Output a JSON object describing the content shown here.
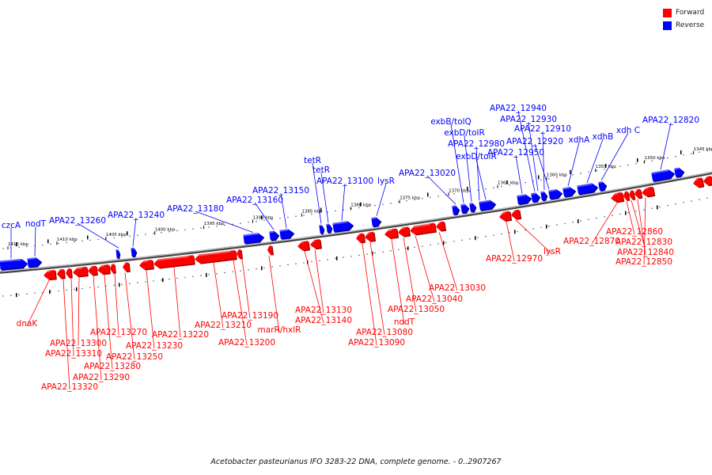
{
  "legend": {
    "forward_label": "Forward",
    "reverse_label": "Reverse",
    "forward_color": "#ff0000",
    "reverse_color": "#0000ff"
  },
  "caption": "Acetobacter pasteurianus IFO 3283-22 DNA, complete genome. - 0..2907267",
  "colors": {
    "forward": "#ff0000",
    "reverse": "#0000ff",
    "backbone": "#777777"
  },
  "ruler": {
    "unit": "kbp",
    "direction": "descending",
    "ticks": [
      1415,
      1410,
      1405,
      1400,
      1395,
      1390,
      1385,
      1380,
      1375,
      1370,
      1365,
      1360,
      1355,
      1350,
      1345
    ]
  },
  "reverse_labels": [
    "czcA",
    "nodT",
    "APA22_13260",
    "APA22_13240",
    "APA22_13180",
    "APA22_13160",
    "APA22_13150",
    "tetR",
    "tetR",
    "APA22_13100",
    "lysR",
    "APA22_13020",
    "exbB/tolQ",
    "exbD/tolR",
    "APA22_12980",
    "exbD/tolR",
    "APA22_12950",
    "APA22_12940",
    "APA22_12930",
    "APA22_12910",
    "APA22_12920",
    "xdhA",
    "xdhB",
    "xdh C",
    "APA22_12820"
  ],
  "forward_labels": [
    "dnaK",
    "APA22_13320",
    "APA22_13310",
    "APA22_13300",
    "APA22_13290",
    "APA22_13280",
    "APA22_13270",
    "APA22_13250",
    "APA22_13230",
    "APA22_13220",
    "APA22_13210",
    "APA22_13200",
    "APA22_13190",
    "marR/hxlR",
    "APA22_13140",
    "APA22_13130",
    "APA22_13090",
    "APA22_13080",
    "nodT",
    "APA22_13050",
    "APA22_13040",
    "APA22_13030",
    "APA22_12970",
    "lysR",
    "APA22_12870",
    "APA22_12860",
    "APA22_12830",
    "APA22_12840",
    "APA22_12850"
  ]
}
